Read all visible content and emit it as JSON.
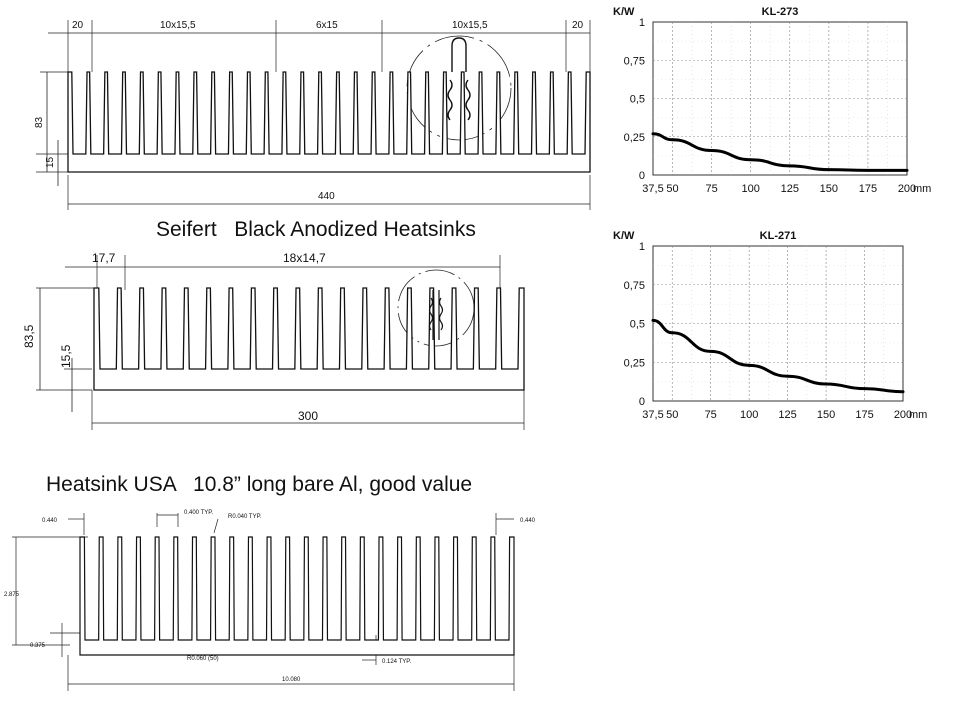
{
  "slide": {
    "title_seifert": "Seifert   Black Anodized Heatsinks",
    "title_usa": "Heatsink USA   10.8” long bare Al, good value"
  },
  "drawing_kl273": {
    "dims": [
      "20",
      "10x15,5",
      "6x15",
      "10x15,5",
      "20"
    ],
    "height": "83",
    "base": "15",
    "width": "440",
    "fin_count": 30
  },
  "drawing_kl271": {
    "dims": [
      "17,7",
      "18x14,7"
    ],
    "height": "83,5",
    "base": "15,5",
    "width": "300",
    "fin_count": 20
  },
  "drawing_usa": {
    "left_edge": "0.440",
    "fin_thk": "0.400  TYP.",
    "fin_radius": "R0.040  TYP.",
    "right_edge": "0.440",
    "height": "2.875",
    "base": "0.375",
    "root_radius": "R0.060  (50)",
    "gap": "0.124  TYP.",
    "width": "10.080",
    "fin_count": 24
  },
  "chart_data": [
    {
      "type": "line",
      "title": "KL-273",
      "ylabel": "K/W",
      "xlabel": "mm",
      "ylim": [
        0,
        1
      ],
      "xlim": [
        37.5,
        200
      ],
      "x_ticks": [
        "37,5",
        "50",
        "75",
        "100",
        "125",
        "150",
        "175",
        "200"
      ],
      "x_tick_values": [
        37.5,
        50,
        75,
        100,
        125,
        150,
        175,
        200
      ],
      "y_ticks": [
        "0",
        "0,25",
        "0,5",
        "0,75",
        "1"
      ],
      "y_tick_values": [
        0,
        0.25,
        0.5,
        0.75,
        1
      ],
      "grid": true,
      "x": [
        37.5,
        50,
        75,
        100,
        125,
        150,
        175,
        200
      ],
      "y": [
        0.27,
        0.23,
        0.16,
        0.1,
        0.06,
        0.035,
        0.03,
        0.03
      ]
    },
    {
      "type": "line",
      "title": "KL-271",
      "ylabel": "K/W",
      "xlabel": "mm",
      "ylim": [
        0,
        1
      ],
      "xlim": [
        37.5,
        200
      ],
      "x_ticks": [
        "37,5",
        "50",
        "75",
        "100",
        "125",
        "150",
        "175",
        "200"
      ],
      "x_tick_values": [
        37.5,
        50,
        75,
        100,
        125,
        150,
        175,
        200
      ],
      "y_ticks": [
        "0",
        "0,25",
        "0,5",
        "0,75",
        "1"
      ],
      "y_tick_values": [
        0,
        0.25,
        0.5,
        0.75,
        1
      ],
      "grid": true,
      "x": [
        37.5,
        50,
        75,
        100,
        125,
        150,
        175,
        200
      ],
      "y": [
        0.52,
        0.44,
        0.32,
        0.23,
        0.16,
        0.11,
        0.08,
        0.06
      ]
    }
  ]
}
